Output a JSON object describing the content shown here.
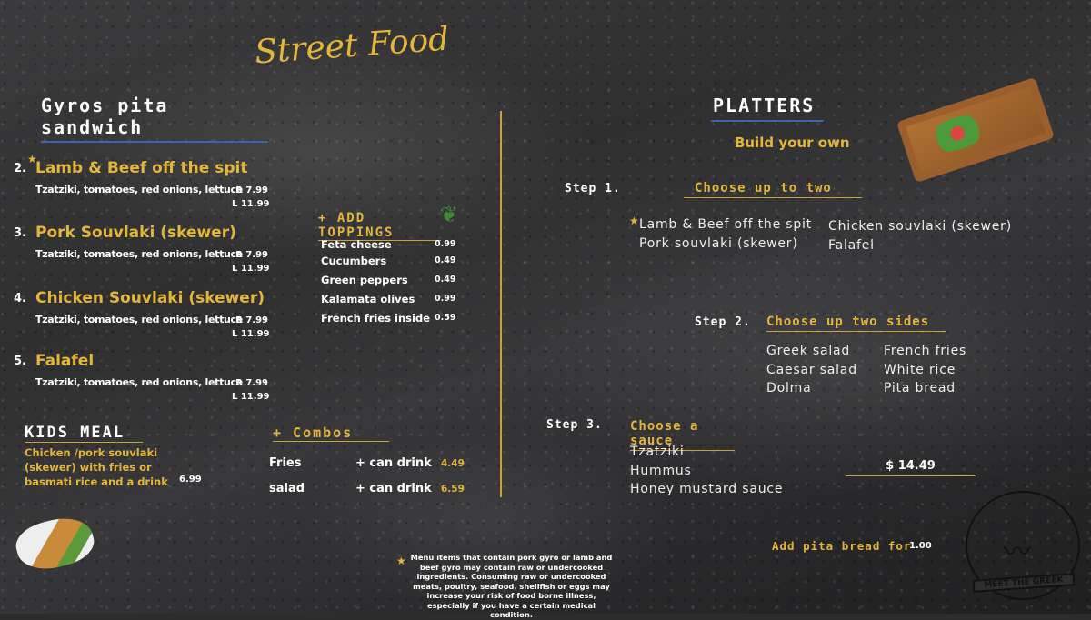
{
  "brand": {
    "script_title": "Street Food",
    "logo_text": "MEET THE GREEK"
  },
  "colors": {
    "accent": "#e3b53a",
    "background": "#2c2c2d"
  },
  "gyros": {
    "title": "Gyros pita sandwich",
    "items": [
      {
        "num": "2.",
        "star": "★",
        "name": "Lamb & Beef off the spit",
        "desc": "Tzatziki, tomatoes, red onions, lettuce",
        "regular": "R  7.99",
        "large": "L 11.99"
      },
      {
        "num": "3.",
        "name": "Pork Souvlaki (skewer)",
        "desc": "Tzatziki, tomatoes, red onions, lettuce",
        "regular": "R  7.99",
        "large": "L 11.99"
      },
      {
        "num": "4.",
        "name": "Chicken Souvlaki  (skewer)",
        "desc": "Tzatziki, tomatoes, red onions, lettuce",
        "regular": "R  7.99",
        "large": "L 11.99"
      },
      {
        "num": "5.",
        "name": "Falafel",
        "desc": "Tzatziki, tomatoes, red onions, lettuce",
        "regular": "R  7.99",
        "large": "L 11.99"
      }
    ]
  },
  "toppings": {
    "title": "+ ADD TOPPINGS",
    "items": [
      {
        "name": "Feta cheese",
        "price": "0.99"
      },
      {
        "name": "Cucumbers",
        "price": "0.49"
      },
      {
        "name": "Green peppers",
        "price": "0.49"
      },
      {
        "name": "Kalamata olives",
        "price": "0.99"
      },
      {
        "name": "French fries inside",
        "price": "0.59"
      }
    ]
  },
  "kids": {
    "title": "KIDS MEAL",
    "desc": "Chicken /pork souvlaki (skewer) with fries or basmati rice and a drink",
    "price": "6.99"
  },
  "combos": {
    "title": "+ Combos",
    "items": [
      {
        "name": "Fries",
        "add": "+ can  drink",
        "price": "4.49"
      },
      {
        "name": "salad",
        "add": "+ can drink",
        "price": "6.59"
      }
    ]
  },
  "disclaimer": "Menu items that contain pork gyro or lamb and beef gyro may contain raw or undercooked ingredients. Consuming raw or undercooked meats, poultry, seafood, shellfish or eggs may increase your risk of food borne illness, especially if you have a certain medical condition.",
  "platters": {
    "title": "PLATTERS",
    "subtitle": "Build your own",
    "step1": {
      "label": "Step 1.",
      "title": "Choose up to two",
      "options": [
        "Lamb & Beef off the spit",
        "Pork souvlaki (skewer)",
        "Chicken souvlaki (skewer)",
        "Falafel"
      ]
    },
    "step2": {
      "label": "Step 2.",
      "title": "Choose up two sides",
      "options": [
        "Greek salad",
        "Caesar salad",
        "Dolma",
        "French fries",
        "White rice",
        "Pita bread"
      ]
    },
    "step3": {
      "label": "Step 3.",
      "title": "Choose a sauce",
      "options": [
        "Tzatziki",
        "Hummus",
        "Honey mustard sauce"
      ]
    },
    "price": "$ 14.49",
    "pita_label": "Add pita bread for",
    "pita_price": "1.00"
  }
}
